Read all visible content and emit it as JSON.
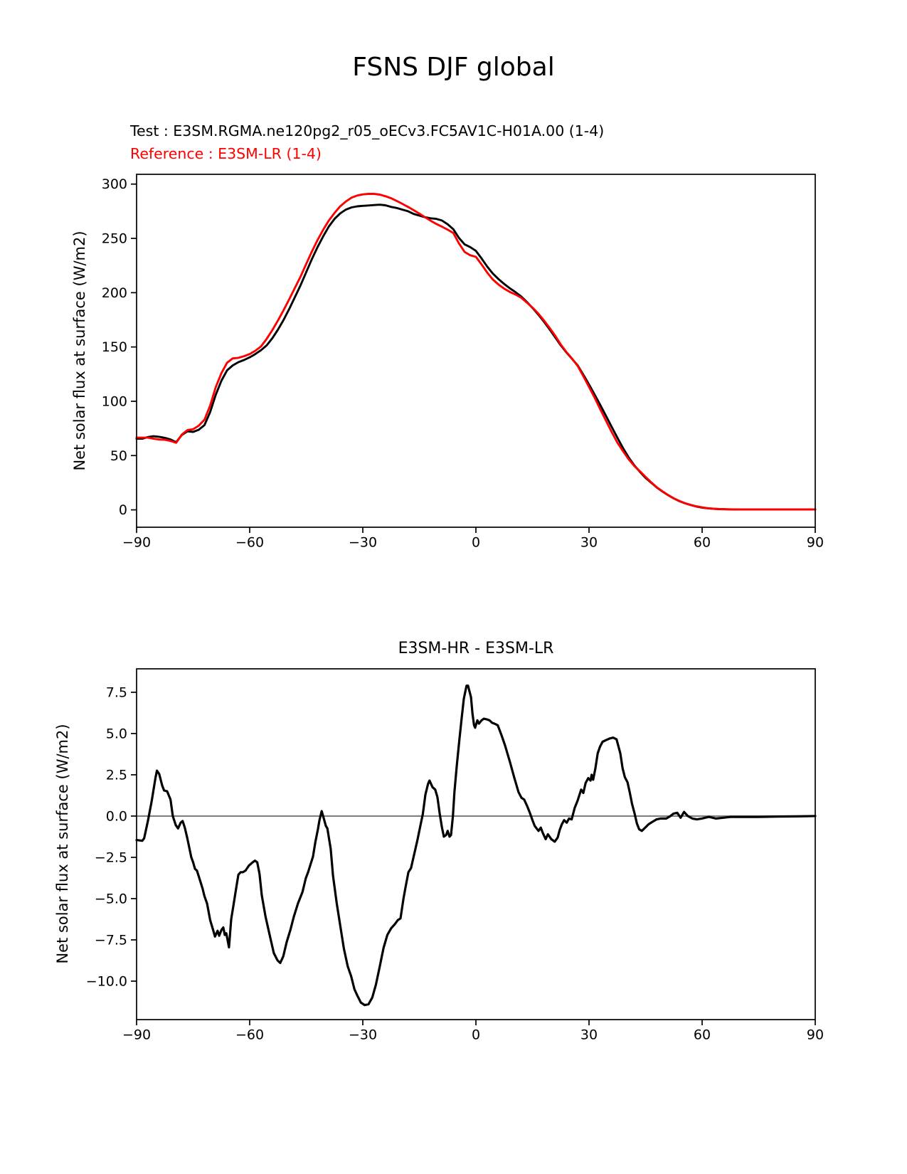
{
  "figure": {
    "suptitle": "FSNS DJF global",
    "test_annotation": "Test : E3SM.RGMA.ne120pg2_r05_oECv3.FC5AV1C-H01A.00 (1-4)",
    "reference_annotation": "Reference : E3SM-LR (1-4)",
    "colors": {
      "test_line": "#000000",
      "reference_line": "#ff0000",
      "zero_line": "#808080",
      "spine": "#000000",
      "background": "#ffffff"
    }
  },
  "chart_data": [
    {
      "type": "line",
      "title": "",
      "xlabel": "",
      "ylabel": "Net solar flux at surface (W/m2)",
      "xlim": [
        -90,
        90
      ],
      "ylim": [
        -16,
        309
      ],
      "grid": false,
      "legend_position": "none",
      "xticks": [
        -90,
        -60,
        -30,
        0,
        30,
        60,
        90
      ],
      "xtick_labels": [
        "−90",
        "−60",
        "−30",
        "0",
        "30",
        "60",
        "90"
      ],
      "yticks": [
        0,
        50,
        100,
        150,
        200,
        250,
        300
      ],
      "ytick_labels": [
        "0",
        "50",
        "100",
        "150",
        "200",
        "250",
        "300"
      ],
      "x": [
        -90,
        -88.5,
        -87,
        -85.5,
        -84,
        -82.5,
        -81,
        -79.5,
        -78,
        -76.5,
        -75,
        -73.5,
        -72,
        -70.5,
        -69,
        -67.5,
        -66,
        -64.5,
        -63,
        -61.5,
        -60,
        -58.5,
        -57,
        -55.5,
        -54,
        -52.5,
        -51,
        -49.5,
        -48,
        -46.5,
        -45,
        -43.5,
        -42,
        -40.5,
        -39,
        -37.5,
        -36,
        -34.5,
        -33,
        -31.5,
        -30,
        -28.5,
        -27,
        -25.5,
        -24,
        -22.5,
        -21,
        -19.5,
        -18,
        -16.5,
        -15,
        -13.5,
        -12,
        -10.5,
        -9,
        -7.5,
        -6,
        -4.5,
        -3,
        -1.5,
        0,
        1.5,
        3,
        4.5,
        6,
        7.5,
        9,
        10.5,
        12,
        13.5,
        15,
        16.5,
        18,
        19.5,
        21,
        22.5,
        24,
        25.5,
        27,
        28.5,
        30,
        31.5,
        33,
        34.5,
        36,
        37.5,
        39,
        40.5,
        42,
        43.5,
        45,
        46.5,
        48,
        49.5,
        51,
        52.5,
        54,
        55.5,
        57,
        58.5,
        60,
        61.5,
        63,
        64.5,
        66,
        67.5,
        69,
        70.5,
        72,
        73.5,
        75,
        76.5,
        78,
        79.5,
        81,
        82.5,
        84,
        85.5,
        87,
        88.5,
        90
      ],
      "series": [
        {
          "name": "Test (E3SM-HR)",
          "color": "#000000",
          "y": [
            65.5,
            65.5,
            67,
            67.8,
            67.3,
            66.3,
            64.8,
            62.3,
            69,
            72.3,
            71.8,
            73.8,
            78,
            90,
            106,
            119,
            128.5,
            133,
            136,
            138,
            140.5,
            143.5,
            147,
            151.5,
            158,
            166,
            175,
            185,
            196,
            207,
            219,
            231,
            242,
            252,
            261,
            268,
            273,
            276.5,
            278.5,
            279.5,
            280,
            280.3,
            280.7,
            281,
            280.5,
            279,
            278,
            276.5,
            275,
            272.5,
            271,
            269.5,
            268.5,
            268,
            266.5,
            263,
            258.5,
            250.5,
            244.5,
            242,
            238.5,
            231.5,
            224,
            217.5,
            212.5,
            208,
            204,
            200.5,
            196.5,
            191.5,
            186,
            180,
            173.5,
            166.5,
            159,
            151.5,
            145,
            139,
            133,
            124.5,
            115.5,
            106,
            96.5,
            86.5,
            76.5,
            66.5,
            57,
            48.5,
            41,
            35,
            29.5,
            25,
            20.5,
            16.8,
            13.5,
            10.5,
            8,
            6,
            4.4,
            3.1,
            2.1,
            1.4,
            0.95,
            0.7,
            0.55,
            0.45,
            0.4,
            0.35,
            0.3,
            0.3,
            0.3,
            0.3,
            0.3,
            0.3,
            0.3,
            0.3,
            0.3,
            0.3,
            0.3,
            0.3,
            0.3
          ]
        },
        {
          "name": "Reference (E3SM-LR)",
          "color": "#ff0000",
          "y": [
            66.5,
            66.5,
            66.5,
            65.5,
            64.8,
            64.5,
            63.5,
            61.8,
            69.3,
            73.5,
            74.3,
            77.5,
            83,
            96,
            113,
            126,
            135.5,
            139.5,
            140,
            141.5,
            143.5,
            146.5,
            150.5,
            157.5,
            165.5,
            174.5,
            184,
            194,
            204.5,
            215,
            226.5,
            238,
            248.5,
            258,
            266.5,
            273.5,
            279.5,
            284,
            287.5,
            289.5,
            290.5,
            291,
            291,
            290.3,
            288.8,
            287,
            284.5,
            281.8,
            279,
            276,
            272.8,
            269.5,
            266.3,
            263.3,
            260.8,
            258,
            255,
            245.5,
            237.5,
            234.5,
            233,
            226,
            218.5,
            212,
            207.5,
            203.7,
            200.7,
            198.3,
            195.4,
            191,
            186.3,
            180.9,
            174.7,
            167.8,
            160.5,
            152.2,
            145.3,
            139.2,
            132.5,
            123.1,
            113.2,
            103.2,
            92.5,
            82,
            71.8,
            62,
            54.2,
            46.7,
            40.5,
            35.5,
            30.3,
            25.4,
            20.7,
            17,
            13.6,
            10.6,
            8.1,
            6.05,
            4.5,
            3.25,
            2.25,
            1.5,
            1.05,
            0.8,
            0.6,
            0.5,
            0.45,
            0.4,
            0.35,
            0.35,
            0.35,
            0.35,
            0.35,
            0.35,
            0.35,
            0.35,
            0.35,
            0.35,
            0.35,
            0.35,
            0.35
          ]
        }
      ]
    },
    {
      "type": "line",
      "title": "E3SM-HR - E3SM-LR",
      "xlabel": "",
      "ylabel": "Net solar flux at surface (W/m2)",
      "xlim": [
        -90,
        90
      ],
      "ylim": [
        -12.33,
        8.92
      ],
      "grid": false,
      "zero_line": true,
      "xticks": [
        -90,
        -60,
        -30,
        0,
        30,
        60,
        90
      ],
      "xtick_labels": [
        "−90",
        "−60",
        "−30",
        "0",
        "30",
        "60",
        "90"
      ],
      "yticks": [
        -10,
        -7.5,
        -5,
        -2.5,
        0,
        2.5,
        5,
        7.5
      ],
      "ytick_labels": [
        "−10.0",
        "−7.5",
        "−5.0",
        "−2.5",
        "0.0",
        "2.5",
        "5.0",
        "7.5"
      ],
      "x": [
        -90,
        -88.5,
        -88,
        -87,
        -86,
        -85,
        -84.6,
        -84,
        -83.2,
        -82.7,
        -81.9,
        -81,
        -80.4,
        -79.6,
        -79,
        -78.3,
        -77.8,
        -77.2,
        -76.5,
        -75.5,
        -75,
        -74.5,
        -74,
        -73.3,
        -72.5,
        -72,
        -71.3,
        -70.5,
        -69.7,
        -69.2,
        -68.5,
        -68.1,
        -67.5,
        -67,
        -66.6,
        -66.2,
        -65.5,
        -64.9,
        -64.3,
        -63.6,
        -63,
        -62.4,
        -61.8,
        -61.1,
        -60.2,
        -59.2,
        -58.6,
        -58,
        -57.4,
        -56.8,
        -55.8,
        -54.5,
        -53.6,
        -52.6,
        -51.9,
        -51.1,
        -50.2,
        -49.2,
        -48.3,
        -47.2,
        -46,
        -45.1,
        -44.5,
        -43.2,
        -42.6,
        -41.9,
        -41.5,
        -40.9,
        -40.4,
        -39.8,
        -39.4,
        -38.5,
        -37.9,
        -36.9,
        -35.9,
        -35,
        -34,
        -33.1,
        -32.2,
        -31.4,
        -30.5,
        -29.5,
        -28.5,
        -27.5,
        -26.5,
        -25.5,
        -24.5,
        -23.5,
        -22.5,
        -21.5,
        -20.7,
        -20,
        -19.2,
        -18.7,
        -17.9,
        -17.2,
        -16.2,
        -15.5,
        -14.7,
        -14.1,
        -13.4,
        -12.7,
        -12.3,
        -11.5,
        -10.8,
        -10.2,
        -9.6,
        -9,
        -8.5,
        -7.9,
        -7.5,
        -7,
        -6.6,
        -6.1,
        -5.7,
        -5.1,
        -4.4,
        -3.8,
        -3.2,
        -2.5,
        -2.1,
        -1.3,
        -0.9,
        -0.5,
        -0.2,
        0.4,
        0.8,
        1.5,
        2.1,
        3,
        3.6,
        4.3,
        4.9,
        5.8,
        6.8,
        7.7,
        9,
        10.2,
        11.3,
        12.1,
        12.8,
        13.6,
        14.3,
        15,
        15.6,
        16.6,
        17.2,
        17.7,
        18.5,
        19.1,
        20,
        20.9,
        21.7,
        22.2,
        22.8,
        23.4,
        24.1,
        24.7,
        25.4,
        26.2,
        27,
        27.9,
        28.5,
        29.1,
        29.8,
        30.4,
        30.7,
        31.1,
        31.7,
        32.3,
        32.9,
        33.6,
        34.5,
        35.5,
        36.4,
        37.3,
        38.3,
        38.9,
        39.5,
        40.2,
        40.8,
        41.4,
        42.1,
        42.7,
        43.3,
        44,
        44.9,
        45.8,
        46.8,
        47.9,
        49,
        50.5,
        51.6,
        52.4,
        53.4,
        54.3,
        55.2,
        56.2,
        57.4,
        58.6,
        59.9,
        61.8,
        63.7,
        65.6,
        67.5,
        70,
        75,
        80,
        85,
        90
      ],
      "series": [
        {
          "name": "difference (E3SM-HR minus E3SM-LR)",
          "color": "#000000",
          "y": [
            -1.45,
            -1.5,
            -1.35,
            -0.3,
            0.9,
            2.3,
            2.75,
            2.55,
            1.85,
            1.55,
            1.5,
            1.0,
            0,
            -0.55,
            -0.75,
            -0.4,
            -0.3,
            -0.7,
            -1.4,
            -2.5,
            -2.8,
            -3.2,
            -3.3,
            -3.8,
            -4.4,
            -4.85,
            -5.3,
            -6.3,
            -6.9,
            -7.3,
            -6.95,
            -7.25,
            -6.9,
            -6.75,
            -7.2,
            -7.1,
            -7.95,
            -6.25,
            -5.4,
            -4.4,
            -3.55,
            -3.4,
            -3.4,
            -3.3,
            -3.0,
            -2.8,
            -2.7,
            -2.8,
            -3.5,
            -4.8,
            -6.1,
            -7.4,
            -8.3,
            -8.75,
            -8.9,
            -8.5,
            -7.65,
            -6.9,
            -6.1,
            -5.3,
            -4.6,
            -3.75,
            -3.4,
            -2.45,
            -1.6,
            -0.8,
            -0.25,
            0.3,
            -0.1,
            -0.6,
            -0.75,
            -2.0,
            -3.6,
            -5.3,
            -6.75,
            -8.05,
            -9.1,
            -9.7,
            -10.5,
            -10.9,
            -11.3,
            -11.45,
            -11.4,
            -11.0,
            -10.2,
            -9.1,
            -8.0,
            -7.2,
            -6.8,
            -6.55,
            -6.3,
            -6.2,
            -5.0,
            -4.35,
            -3.4,
            -3.15,
            -2.15,
            -1.45,
            -0.55,
            0.1,
            1.3,
            1.95,
            2.15,
            1.75,
            1.6,
            1.15,
            0.15,
            -0.7,
            -1.25,
            -1.15,
            -0.9,
            -1.25,
            -1.15,
            0,
            1.45,
            3.0,
            4.6,
            5.9,
            7.1,
            7.9,
            7.9,
            7.2,
            6.2,
            5.5,
            5.35,
            5.8,
            5.6,
            5.8,
            5.9,
            5.85,
            5.8,
            5.65,
            5.6,
            5.5,
            4.9,
            4.3,
            3.3,
            2.3,
            1.45,
            1.1,
            1.0,
            0.6,
            0.2,
            -0.25,
            -0.6,
            -0.9,
            -0.7,
            -1.0,
            -1.4,
            -1.1,
            -1.4,
            -1.55,
            -1.3,
            -0.85,
            -0.5,
            -0.25,
            -0.4,
            -0.15,
            -0.2,
            0.5,
            0.95,
            1.6,
            1.4,
            2.0,
            2.3,
            2.15,
            2.5,
            2.2,
            2.9,
            3.8,
            4.2,
            4.5,
            4.6,
            4.7,
            4.75,
            4.65,
            3.8,
            2.9,
            2.35,
            2.05,
            1.45,
            0.75,
            0.15,
            -0.45,
            -0.8,
            -0.9,
            -0.7,
            -0.5,
            -0.35,
            -0.2,
            -0.15,
            -0.15,
            0,
            0.15,
            0.2,
            -0.1,
            0.25,
            0,
            -0.15,
            -0.2,
            -0.15,
            -0.05,
            -0.15,
            -0.1,
            -0.05,
            -0.05,
            -0.05,
            -0.03,
            -0.02,
            0
          ]
        }
      ]
    }
  ]
}
